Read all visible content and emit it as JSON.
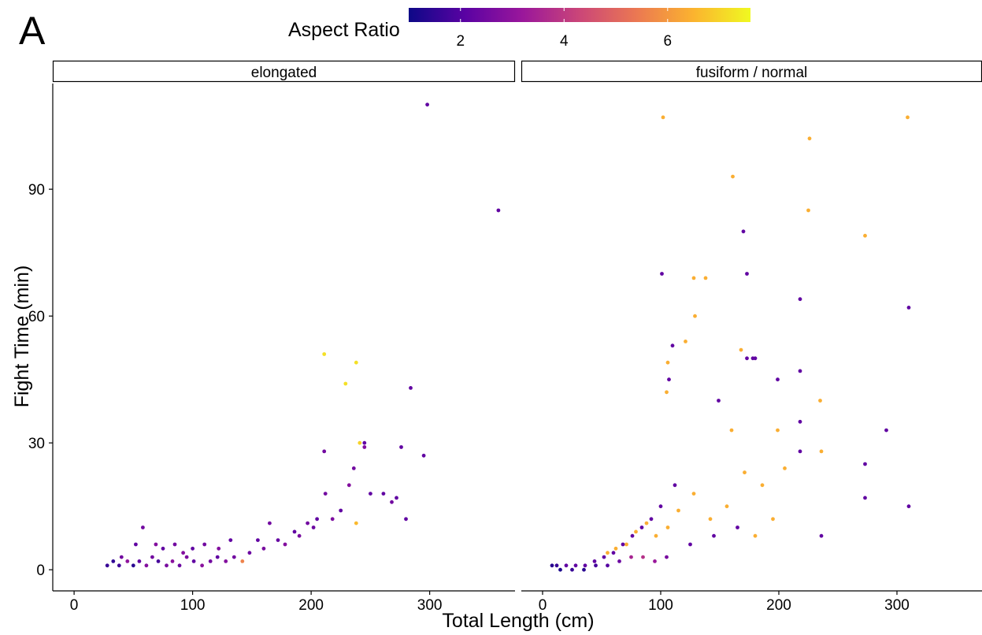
{
  "panel_tag": "A",
  "chart_data": {
    "type": "scatter",
    "xlabel": "Total Length (cm)",
    "ylabel": "Fight Time (min)",
    "xlim": [
      -18,
      372
    ],
    "ylim": [
      -5,
      115
    ],
    "x_ticks": [
      0,
      100,
      200,
      300
    ],
    "y_ticks": [
      0,
      30,
      60,
      90
    ],
    "grid": false,
    "legend": {
      "title": "Aspect Ratio",
      "placement": "top",
      "range": [
        1,
        7.6
      ],
      "ticks": [
        2,
        4,
        6
      ],
      "colors": [
        "#0d0887",
        "#5b02a3",
        "#9a179b",
        "#cb4678",
        "#eb7852",
        "#fbb32f",
        "#f0f921"
      ]
    },
    "facets": [
      {
        "label": "elongated",
        "points": [
          [
            298,
            110,
            2.2
          ],
          [
            358,
            85,
            2.2
          ],
          [
            284,
            43,
            2.2
          ],
          [
            295,
            27,
            2.2
          ],
          [
            276,
            29,
            2.2
          ],
          [
            280,
            12,
            2.2
          ],
          [
            272,
            17,
            2.2
          ],
          [
            268,
            16,
            2.5
          ],
          [
            261,
            18,
            2.2
          ],
          [
            250,
            18,
            2.2
          ],
          [
            245,
            30,
            2.2
          ],
          [
            241,
            30,
            7.0
          ],
          [
            238,
            49,
            7.2
          ],
          [
            229,
            44,
            7.2
          ],
          [
            211,
            51,
            7.2
          ],
          [
            211,
            28,
            2.5
          ],
          [
            238,
            11,
            6.6
          ],
          [
            245,
            29,
            2.8
          ],
          [
            236,
            24,
            2.5
          ],
          [
            232,
            20,
            2.8
          ],
          [
            225,
            14,
            2.2
          ],
          [
            212,
            18,
            2.5
          ],
          [
            205,
            12,
            2.2
          ],
          [
            197,
            11,
            2.5
          ],
          [
            186,
            9,
            2.2
          ],
          [
            178,
            6,
            2.8
          ],
          [
            165,
            11,
            2.5
          ],
          [
            155,
            7,
            2.2
          ],
          [
            142,
            2,
            5.6
          ],
          [
            132,
            7,
            2.2
          ],
          [
            122,
            5,
            2.8
          ],
          [
            110,
            6,
            2.5
          ],
          [
            100,
            5,
            2.2
          ],
          [
            92,
            4,
            2.8
          ],
          [
            85,
            6,
            2.5
          ],
          [
            75,
            5,
            2.2
          ],
          [
            69,
            6,
            2.8
          ],
          [
            58,
            10,
            2.5
          ],
          [
            52,
            6,
            2.2
          ],
          [
            40,
            3,
            2.5
          ],
          [
            28,
            1,
            1.6
          ],
          [
            33,
            2,
            1.5
          ],
          [
            38,
            1,
            1.7
          ],
          [
            45,
            2,
            3.0
          ],
          [
            50,
            1,
            1.4
          ],
          [
            55,
            2,
            2.2
          ],
          [
            61,
            1,
            2.8
          ],
          [
            66,
            3,
            2.5
          ],
          [
            71,
            2,
            1.8
          ],
          [
            78,
            1,
            2.6
          ],
          [
            83,
            2,
            2.9
          ],
          [
            89,
            1,
            2.4
          ],
          [
            95,
            3,
            2.7
          ],
          [
            101,
            2,
            2.2
          ],
          [
            108,
            1,
            2.9
          ],
          [
            115,
            2,
            2.5
          ],
          [
            121,
            3,
            2.2
          ],
          [
            128,
            2,
            2.8
          ],
          [
            135,
            3,
            2.5
          ],
          [
            148,
            4,
            2.4
          ],
          [
            160,
            5,
            2.6
          ],
          [
            172,
            7,
            2.3
          ],
          [
            190,
            8,
            2.6
          ],
          [
            202,
            10,
            2.4
          ],
          [
            218,
            12,
            2.7
          ]
        ]
      },
      {
        "label": "fusiform / normal",
        "points": [
          [
            102,
            107,
            6.4
          ],
          [
            309,
            107,
            6.4
          ],
          [
            226,
            102,
            6.4
          ],
          [
            161,
            93,
            6.4
          ],
          [
            225,
            85,
            6.4
          ],
          [
            273,
            79,
            6.4
          ],
          [
            170,
            80,
            2.2
          ],
          [
            310,
            62,
            2.2
          ],
          [
            101,
            70,
            2.2
          ],
          [
            173,
            70,
            2.2
          ],
          [
            128,
            69,
            6.4
          ],
          [
            138,
            69,
            6.4
          ],
          [
            129,
            60,
            6.4
          ],
          [
            218,
            64,
            2.2
          ],
          [
            121,
            54,
            6.4
          ],
          [
            110,
            53,
            2.2
          ],
          [
            168,
            52,
            6.4
          ],
          [
            173,
            50,
            2.2
          ],
          [
            180,
            50,
            2.2
          ],
          [
            178,
            50,
            2.2
          ],
          [
            106,
            49,
            6.4
          ],
          [
            218,
            47,
            2.2
          ],
          [
            199,
            45,
            2.2
          ],
          [
            107,
            45,
            2.2
          ],
          [
            105,
            42,
            6.4
          ],
          [
            149,
            40,
            2.2
          ],
          [
            235,
            40,
            6.4
          ],
          [
            218,
            35,
            2.2
          ],
          [
            291,
            33,
            2.2
          ],
          [
            199,
            33,
            6.4
          ],
          [
            160,
            33,
            6.4
          ],
          [
            236,
            28,
            6.4
          ],
          [
            273,
            25,
            2.2
          ],
          [
            310,
            15,
            2.2
          ],
          [
            273,
            17,
            2.2
          ],
          [
            218,
            28,
            2.2
          ],
          [
            205,
            24,
            6.4
          ],
          [
            186,
            20,
            6.4
          ],
          [
            171,
            23,
            6.4
          ],
          [
            156,
            15,
            6.4
          ],
          [
            142,
            12,
            6.4
          ],
          [
            128,
            18,
            6.4
          ],
          [
            115,
            14,
            6.4
          ],
          [
            106,
            10,
            6.4
          ],
          [
            96,
            8,
            6.4
          ],
          [
            88,
            11,
            6.4
          ],
          [
            79,
            9,
            6.4
          ],
          [
            71,
            6,
            6.4
          ],
          [
            62,
            5,
            6.4
          ],
          [
            55,
            4,
            6.4
          ],
          [
            112,
            20,
            2.2
          ],
          [
            100,
            15,
            2.2
          ],
          [
            92,
            12,
            2.2
          ],
          [
            84,
            10,
            2.2
          ],
          [
            76,
            8,
            2.2
          ],
          [
            68,
            6,
            2.2
          ],
          [
            60,
            4,
            2.2
          ],
          [
            52,
            3,
            2.2
          ],
          [
            44,
            2,
            2.2
          ],
          [
            36,
            1,
            2.2
          ],
          [
            28,
            1,
            2.2
          ],
          [
            20,
            1,
            2.2
          ],
          [
            12,
            1,
            1.6
          ],
          [
            8,
            1,
            1.4
          ],
          [
            15,
            0,
            1.2
          ],
          [
            25,
            0,
            1.6
          ],
          [
            35,
            0,
            1.4
          ],
          [
            45,
            1,
            1.8
          ],
          [
            55,
            1,
            2.0
          ],
          [
            65,
            2,
            2.4
          ],
          [
            75,
            3,
            3.5
          ],
          [
            85,
            3,
            3.8
          ],
          [
            95,
            2,
            3.2
          ],
          [
            105,
            3,
            2.6
          ],
          [
            125,
            6,
            2.2
          ],
          [
            145,
            8,
            2.2
          ],
          [
            165,
            10,
            2.2
          ],
          [
            180,
            8,
            6.4
          ],
          [
            195,
            12,
            6.4
          ],
          [
            236,
            8,
            2.2
          ]
        ]
      }
    ]
  }
}
